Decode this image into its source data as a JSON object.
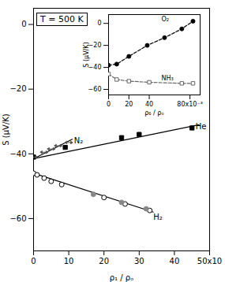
{
  "chart_data": [
    {
      "type": "line",
      "title": "T = 500 K",
      "xlabel": "ρ₁ / ρₒ",
      "ylabel": "S (μV/K)",
      "xlim": [
        0,
        50
      ],
      "ylim": [
        -70,
        5
      ],
      "xticks": [
        0,
        10,
        20,
        30,
        40,
        {
          "value": 50,
          "label": "50x10"
        }
      ],
      "yticks": [
        -60,
        -40,
        -20,
        0
      ],
      "series": [
        {
          "type": "line",
          "color": "black",
          "line_style": "solid",
          "x": [
            0,
            47
          ],
          "values": [
            -41.5,
            -31.0
          ]
        },
        {
          "type": "scatter",
          "color": "black",
          "marker": "square",
          "x": [
            0,
            9,
            25,
            30,
            45
          ],
          "values": [
            -41,
            -38,
            -35,
            -34,
            -32
          ]
        },
        {
          "type": "line",
          "color": "black",
          "line_style": "solid",
          "x": [
            0,
            11
          ],
          "values": [
            -41.5,
            -35.5
          ]
        },
        {
          "type": "scatter",
          "color": "#555555",
          "marker": "double_arrow",
          "x": [
            0,
            3,
            5,
            7,
            10
          ],
          "values": [
            -41,
            -39.5,
            -38.5,
            -37.5,
            -36.5
          ]
        },
        {
          "type": "line",
          "color": "black",
          "line_style": "solid",
          "x": [
            0,
            34
          ],
          "values": [
            -46.0,
            -58.0
          ]
        },
        {
          "type": "scatter",
          "color": "black",
          "marker": "open_circle",
          "x": [
            0,
            1,
            3,
            5,
            8,
            20,
            26,
            33
          ],
          "values": [
            -46,
            -46.5,
            -47.5,
            -48.5,
            -49.5,
            -53.5,
            -55.5,
            -57.5
          ]
        },
        {
          "type": "scatter",
          "color": "#888888",
          "marker": "circle",
          "x": [
            17,
            25,
            32
          ],
          "values": [
            -52.5,
            -55.0,
            -57.0
          ]
        }
      ],
      "annotations": [
        {
          "text": "He",
          "x": 46,
          "y": -31.5
        },
        {
          "text": "N₂",
          "x": 11.5,
          "y": -36.0
        },
        {
          "text": "H₂",
          "x": 34,
          "y": -59.5
        }
      ]
    },
    {
      "type": "line",
      "xlabel": "ρ₆ / ρₒ",
      "ylabel": "S (μV/K)",
      "xlim": [
        0,
        90
      ],
      "ylim": [
        -65,
        8
      ],
      "xticks": [
        0,
        20,
        40,
        {
          "value": 80,
          "label": "80x10⁻³"
        }
      ],
      "yticks": [
        -60,
        -40,
        -20,
        0
      ],
      "series": [
        {
          "type": "line",
          "color": "black",
          "line_style": "dashed",
          "marker": "circle",
          "x": [
            0,
            8,
            20,
            38,
            55,
            72,
            83
          ],
          "values": [
            -38,
            -37,
            -30,
            -20,
            -13,
            -5,
            2
          ]
        },
        {
          "type": "line",
          "color": "#666666",
          "line_style": "dashed",
          "marker": "open_square",
          "x": [
            0,
            8,
            20,
            40,
            72,
            83
          ],
          "values": [
            -46,
            -51,
            -52.5,
            -53.5,
            -54.5,
            -54.5
          ]
        }
      ],
      "annotations": [
        {
          "text": "O₂",
          "x": 52,
          "y": 2
        },
        {
          "text": "NH₃",
          "x": 52,
          "y": -51.5
        }
      ]
    }
  ]
}
